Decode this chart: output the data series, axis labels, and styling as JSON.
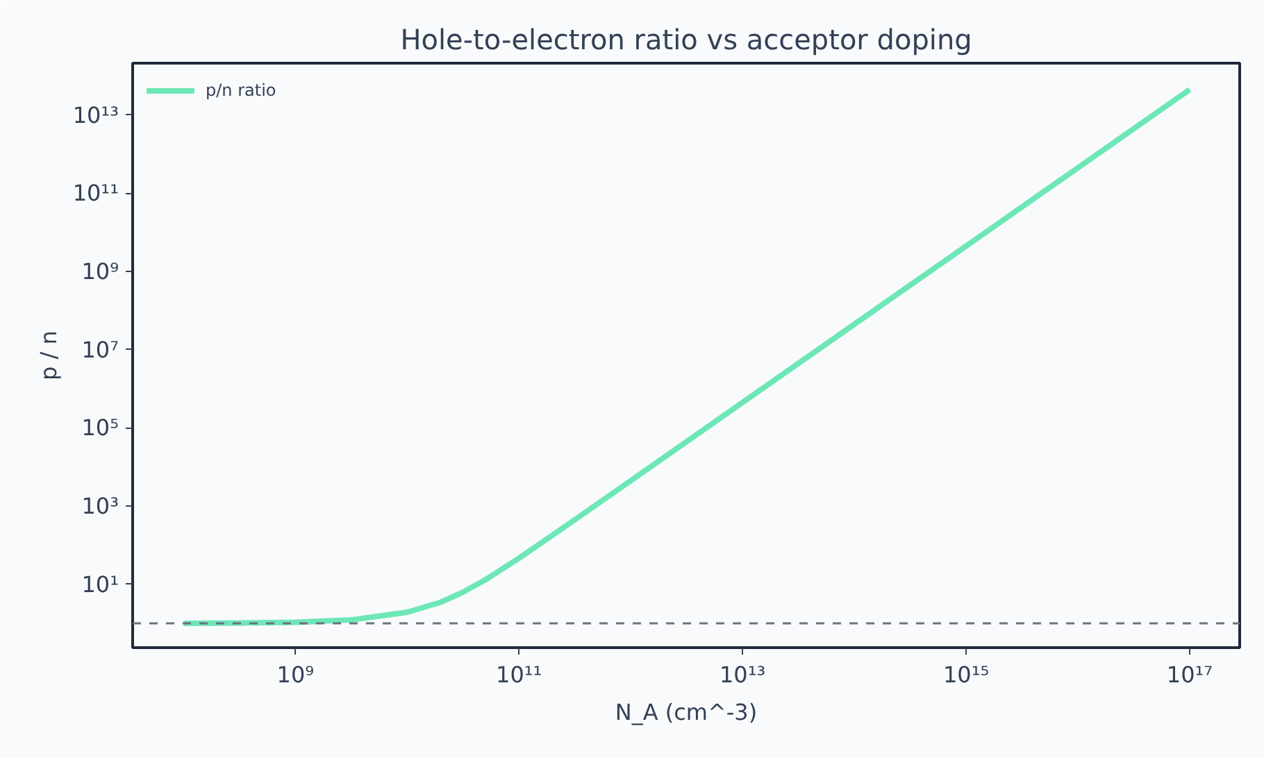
{
  "chart_data": {
    "type": "line",
    "title": "Hole-to-electron ratio vs acceptor doping",
    "xlabel": "N_A (cm^-3)",
    "ylabel": "p / n",
    "log": "xy",
    "grid": false,
    "legend": "top left",
    "line_style": "solid",
    "marker": "none",
    "xlim": [
      35000000.0,
      2.8e+17
    ],
    "ylim": [
      0.24,
      210000000000000.0
    ],
    "xticks": [
      {
        "value": 1000000000.0,
        "label": "10⁹"
      },
      {
        "value": 100000000000.0,
        "label": "10¹¹"
      },
      {
        "value": 10000000000000.0,
        "label": "10¹³"
      },
      {
        "value": 1000000000000000.0,
        "label": "10¹⁵"
      },
      {
        "value": 1e+17,
        "label": "10¹⁷"
      }
    ],
    "yticks": [
      {
        "value": 10,
        "label": "10¹"
      },
      {
        "value": 1000,
        "label": "10³"
      },
      {
        "value": 100000.0,
        "label": "10⁵"
      },
      {
        "value": 10000000.0,
        "label": "10⁷"
      },
      {
        "value": 1000000000.0,
        "label": "10⁹"
      },
      {
        "value": 100000000000.0,
        "label": "10¹¹"
      },
      {
        "value": 10000000000000.0,
        "label": "10¹³"
      }
    ],
    "series": [
      {
        "name": "p/n ratio",
        "color": "#6ee7b7",
        "x": [
          100000000.0,
          316000000.0,
          1000000000.0,
          3160000000.0,
          10000000000.0,
          20000000000.0,
          31600000000.0,
          50000000000.0,
          100000000000.0,
          316000000000.0,
          1000000000000.0,
          10000000000000.0,
          100000000000000.0,
          1000000000000000.0,
          1e+16,
          1e+17
        ],
        "values": [
          1.007,
          1.02,
          1.07,
          1.23,
          1.93,
          3.49,
          6.29,
          13.0,
          46.4,
          446,
          4450,
          444000.0,
          44400000.0,
          4440000000.0,
          444000000000.0,
          44400000000000.0
        ]
      }
    ],
    "ref_lines": [
      {
        "axis": "y",
        "value": 1,
        "color": "#6b7280",
        "line_style": "dashed"
      }
    ]
  }
}
